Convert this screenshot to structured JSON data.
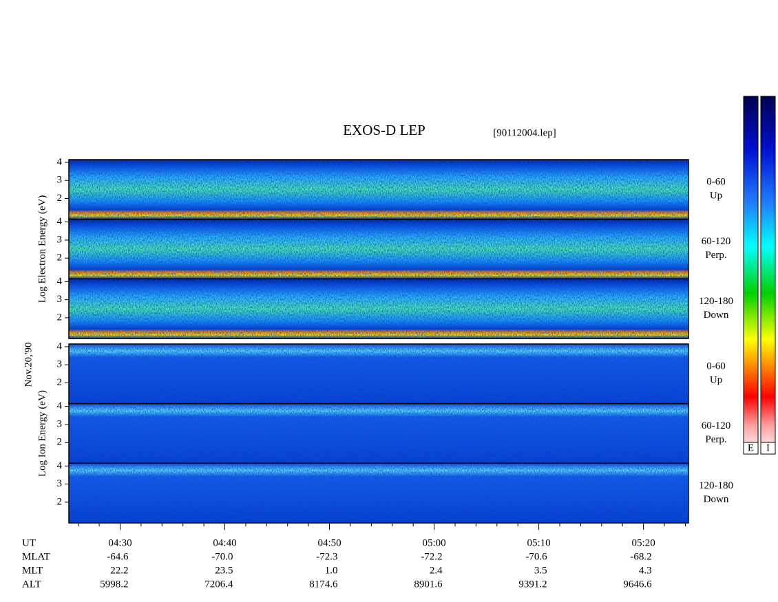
{
  "title": "EXOS-D LEP",
  "file": "[90112004.lep]",
  "date": "Nov.20,'90",
  "groups": [
    {
      "ylabel": "Log  Electron  Energy (eV)",
      "panels": [
        {
          "label": "0-60",
          "sublabel": "Up"
        },
        {
          "label": "60-120",
          "sublabel": "Perp."
        },
        {
          "label": "120-180",
          "sublabel": "Down"
        }
      ]
    },
    {
      "ylabel": "Log  Ion  Energy (eV)",
      "panels": [
        {
          "label": "0-60",
          "sublabel": "Up"
        },
        {
          "label": "60-120",
          "sublabel": "Perp."
        },
        {
          "label": "120-180",
          "sublabel": "Down"
        }
      ]
    }
  ],
  "ylim": [
    0.85,
    4.15
  ],
  "yticks": [
    2,
    3,
    4
  ],
  "xlim": [
    265.1,
    324.3
  ],
  "xticks": [
    {
      "value": 270,
      "label": "04:30"
    },
    {
      "value": 280,
      "label": "04:40"
    },
    {
      "value": 290,
      "label": "04:50"
    },
    {
      "value": 300,
      "label": "05:00"
    },
    {
      "value": 310,
      "label": "05:10"
    },
    {
      "value": 320,
      "label": "05:20"
    }
  ],
  "minor_xticks": [
    266,
    268,
    272,
    274,
    276,
    278,
    282,
    284,
    286,
    288,
    292,
    294,
    296,
    298,
    302,
    304,
    306,
    308,
    312,
    314,
    316,
    318,
    322,
    324
  ],
  "x_label": "UT",
  "ephemeris": [
    {
      "label": "MLAT",
      "values": [
        "-64.6",
        "-70.0",
        "-72.3",
        "-72.2",
        "-70.6",
        "-68.2"
      ]
    },
    {
      "label": "MLT",
      "values": [
        "22.2",
        "23.5",
        "1.0",
        "2.4",
        "3.5",
        "4.3"
      ]
    },
    {
      "label": "ALT",
      "values": [
        "5998.2",
        "7206.4",
        "8174.6",
        "8901.6",
        "9391.2",
        "9646.6"
      ]
    }
  ],
  "colorbars": [
    "E",
    "I"
  ]
}
